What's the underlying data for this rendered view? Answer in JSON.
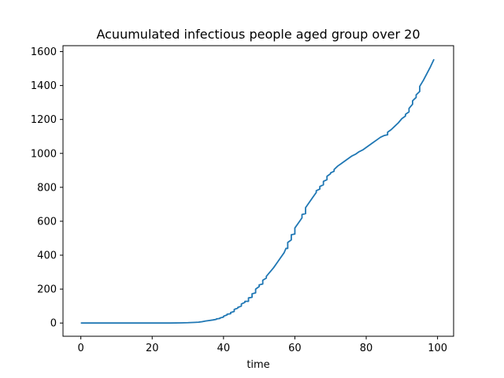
{
  "chart_data": {
    "type": "line",
    "title": "Acuumulated infectious people aged group over 20",
    "xlabel": "time",
    "ylabel": "",
    "xlim": [
      -5,
      104.5
    ],
    "ylim": [
      -78,
      1635
    ],
    "x_ticks": [
      0,
      20,
      40,
      60,
      80,
      100
    ],
    "y_ticks": [
      0,
      200,
      400,
      600,
      800,
      1000,
      1200,
      1400,
      1600
    ],
    "grid": false,
    "line_color": "#1f77b4",
    "series": [
      {
        "x": [
          0,
          10,
          20,
          25,
          28,
          30,
          32,
          33,
          34,
          35,
          36,
          37,
          38,
          38,
          39,
          39,
          40,
          40,
          41,
          41,
          42,
          42,
          43,
          43,
          44,
          44,
          45,
          45,
          46,
          46,
          47,
          47,
          48,
          48,
          49,
          49,
          50,
          50,
          51,
          51,
          52,
          52,
          53,
          54,
          55,
          56,
          57,
          57.5,
          58,
          58,
          59,
          59,
          60,
          60,
          61,
          62,
          62,
          63,
          63,
          64,
          65,
          66,
          66,
          67,
          67,
          68,
          68,
          69,
          69,
          70,
          70,
          71,
          71,
          72,
          73,
          74,
          75,
          76,
          77,
          78,
          79,
          80,
          81,
          82,
          83,
          84,
          85,
          86,
          86,
          87,
          88,
          89,
          90,
          91,
          91,
          92,
          92,
          93,
          93,
          94,
          94,
          95,
          95,
          96,
          97,
          98,
          99
        ],
        "y": [
          0,
          0,
          0,
          0,
          1,
          2,
          4,
          5,
          8,
          12,
          15,
          18,
          22,
          24,
          27,
          30,
          35,
          40,
          48,
          52,
          55,
          62,
          68,
          80,
          88,
          92,
          100,
          112,
          122,
          128,
          128,
          148,
          152,
          172,
          178,
          200,
          215,
          225,
          230,
          252,
          265,
          275,
          300,
          325,
          355,
          385,
          415,
          440,
          440,
          475,
          490,
          520,
          525,
          560,
          590,
          620,
          640,
          645,
          680,
          710,
          740,
          770,
          780,
          790,
          805,
          815,
          835,
          845,
          865,
          880,
          885,
          895,
          905,
          925,
          940,
          955,
          970,
          985,
          995,
          1010,
          1020,
          1035,
          1050,
          1065,
          1080,
          1095,
          1105,
          1110,
          1125,
          1140,
          1160,
          1180,
          1205,
          1220,
          1230,
          1245,
          1265,
          1290,
          1310,
          1330,
          1345,
          1365,
          1395,
          1430,
          1470,
          1510,
          1555
        ]
      }
    ]
  }
}
